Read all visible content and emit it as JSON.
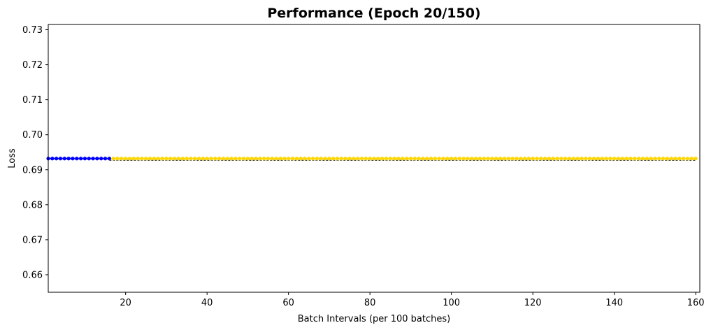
{
  "chart_data": {
    "type": "line",
    "title": "Performance (Epoch 20/150)",
    "xlabel": "Batch Intervals (per 100 batches)",
    "ylabel": "Loss",
    "xlim": [
      1,
      161
    ],
    "ylim": [
      0.655,
      0.7315
    ],
    "xticks": [
      20,
      40,
      60,
      80,
      100,
      120,
      140,
      160
    ],
    "yticks": [
      0.66,
      0.67,
      0.68,
      0.69,
      0.7,
      0.71,
      0.72,
      0.73
    ],
    "ytick_labels": [
      "0.66",
      "0.67",
      "0.68",
      "0.69",
      "0.70",
      "0.71",
      "0.72",
      "0.73"
    ],
    "grid": false,
    "series": [
      {
        "color": "#0000ff",
        "marker": "circle",
        "x_start": 1,
        "x_end": 16,
        "value": 0.6932
      },
      {
        "color": "#ffd700",
        "marker": "circle",
        "x_start": 16,
        "x_end": 160,
        "value": 0.6932
      }
    ],
    "reference_line": {
      "color": "#000000",
      "style": "dashed",
      "x_start": 16,
      "x_end": 160,
      "value": 0.6927
    }
  }
}
